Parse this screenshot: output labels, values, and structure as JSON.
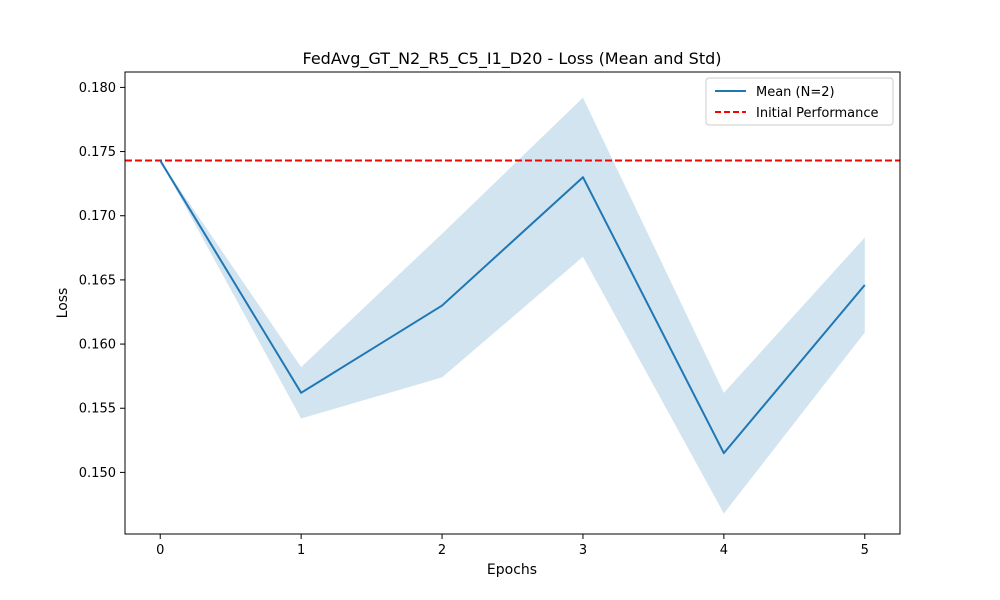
{
  "chart_data": {
    "type": "line",
    "title": "FedAvg_GT_N2_R5_C5_I1_D20 - Loss (Mean and Std)",
    "xlabel": "Epochs",
    "ylabel": "Loss",
    "x": [
      0,
      1,
      2,
      3,
      4,
      5
    ],
    "xlim": [
      -0.25,
      5.25
    ],
    "ylim": [
      0.1452,
      0.1812
    ],
    "x_ticks": [
      0,
      1,
      2,
      3,
      4,
      5
    ],
    "y_ticks": [
      0.15,
      0.155,
      0.16,
      0.165,
      0.17,
      0.175,
      0.18
    ],
    "y_tick_labels": [
      "0.150",
      "0.155",
      "0.160",
      "0.165",
      "0.170",
      "0.175",
      "0.180"
    ],
    "series": [
      {
        "name": "Mean (N=2)",
        "color": "#1f77b4",
        "values": [
          0.1743,
          0.1562,
          0.163,
          0.173,
          0.1515,
          0.1646
        ],
        "band_upper": [
          0.1743,
          0.1582,
          0.1686,
          0.1792,
          0.1562,
          0.1683
        ],
        "band_lower": [
          0.1743,
          0.1542,
          0.1574,
          0.1668,
          0.1468,
          0.1609
        ],
        "band_color": "#1f77b4"
      }
    ],
    "reference_line": {
      "name": "Initial Performance",
      "y": 0.1743,
      "color": "#ff0000",
      "style": "dashed"
    },
    "legend_position": "top-right",
    "grid": false
  }
}
